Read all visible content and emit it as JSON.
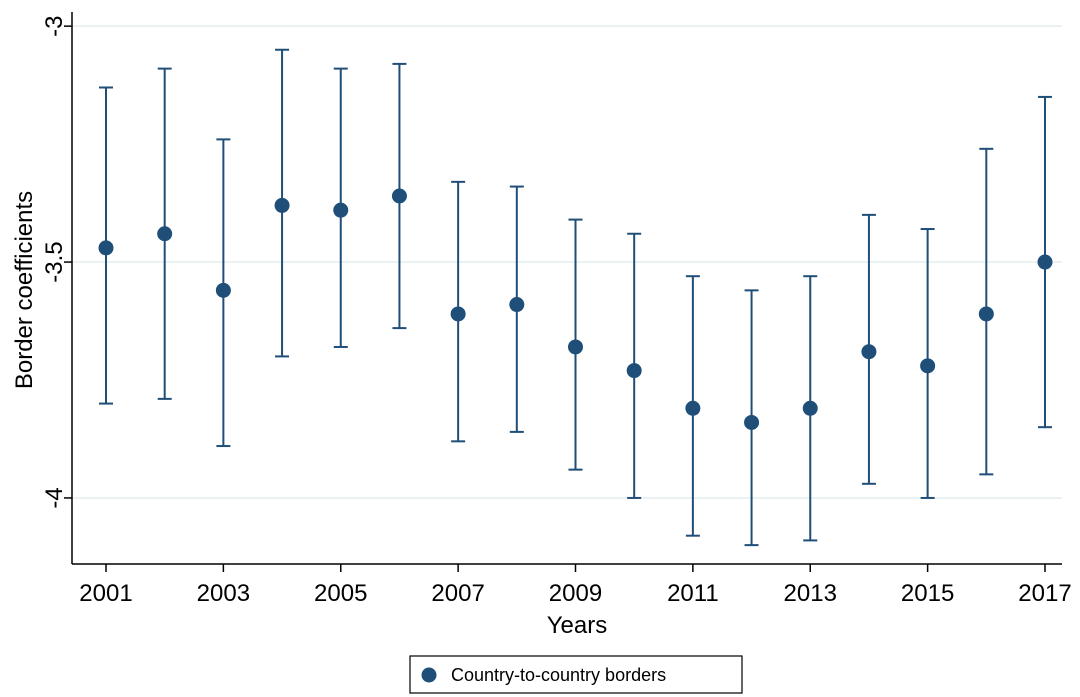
{
  "chart_data": {
    "type": "scatter",
    "title": "",
    "xlabel": "Years",
    "ylabel": "Border coefficients",
    "xlim": [
      2001,
      2017
    ],
    "ylim": [
      -4.14,
      -2.97
    ],
    "x_ticks": [
      "2001",
      "2003",
      "2005",
      "2007",
      "2009",
      "2011",
      "2013",
      "2015",
      "2017"
    ],
    "y_ticks": [
      "-3",
      "-3.5",
      "-4"
    ],
    "grid": true,
    "legend_position": "bottom-center",
    "series": [
      {
        "name": "Country-to-country borders",
        "color": "#1f4e79",
        "marker": "circle",
        "error_bars": true,
        "x": [
          2001,
          2002,
          2003,
          2004,
          2005,
          2006,
          2007,
          2008,
          2009,
          2010,
          2011,
          2012,
          2013,
          2014,
          2015,
          2016,
          2017
        ],
        "y": [
          -3.47,
          -3.44,
          -3.56,
          -3.38,
          -3.39,
          -3.36,
          -3.61,
          -3.59,
          -3.68,
          -3.73,
          -3.81,
          -3.84,
          -3.81,
          -3.69,
          -3.72,
          -3.61,
          -3.5
        ],
        "lower": [
          -3.8,
          -3.79,
          -3.89,
          -3.7,
          -3.68,
          -3.64,
          -3.88,
          -3.86,
          -3.94,
          -4.0,
          -4.08,
          -4.1,
          -4.09,
          -3.97,
          -4.0,
          -3.95,
          -3.85
        ],
        "upper": [
          -3.13,
          -3.09,
          -3.24,
          -3.05,
          -3.09,
          -3.08,
          -3.33,
          -3.34,
          -3.41,
          -3.44,
          -3.53,
          -3.56,
          -3.53,
          -3.4,
          -3.43,
          -3.26,
          -3.15
        ]
      }
    ]
  }
}
